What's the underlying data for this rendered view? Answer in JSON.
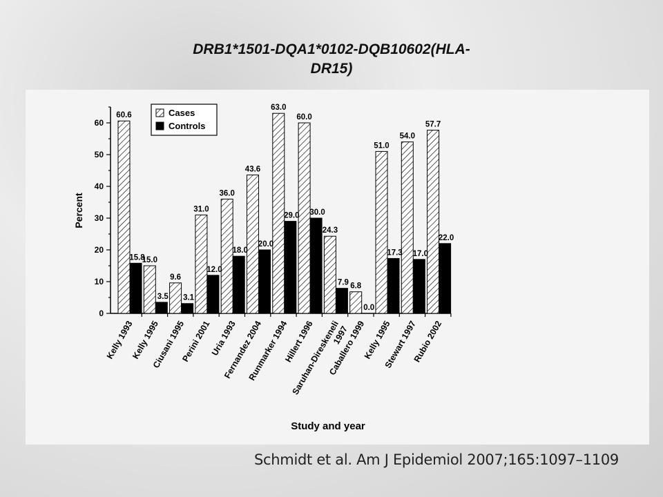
{
  "slide": {
    "title_line1": "DRB1*1501-DQA1*0102-DQB10602(HLA-",
    "title_line2": "DR15)",
    "citation": "Schmidt et al. Am J Epidemiol 2007;165:1097–1109"
  },
  "chart_data": {
    "type": "bar",
    "categories": [
      "Kelly 1993",
      "Kelly 1995",
      "Ciusani 1995",
      "Perini 2001",
      "Uria 1993",
      "Fernandez 2004",
      "Runmarker 1994",
      "Hillert 1996",
      "Saruhan-Direskeneli\n1997",
      "Caballero 1999",
      "Kelly 1995",
      "Stewart 1997",
      "Rubio 2002"
    ],
    "series": [
      {
        "name": "Cases",
        "values": [
          60.6,
          15.0,
          9.6,
          31.0,
          36.0,
          43.6,
          63.0,
          60.0,
          24.3,
          6.8,
          51.0,
          54.0,
          57.7
        ],
        "pattern": "hatched"
      },
      {
        "name": "Controls",
        "values": [
          15.8,
          3.5,
          3.1,
          12.0,
          18.0,
          20.0,
          29.0,
          30.0,
          7.9,
          0.0,
          17.3,
          17.0,
          22.0
        ],
        "color": "#000000"
      }
    ],
    "data_labels": {
      "Cases": [
        "60.6",
        "15.0",
        "9.6",
        "31.0",
        "36.0",
        "43.6",
        "63.0",
        "60.0",
        "24.3",
        "6.8",
        "51.0",
        "54.0",
        "57.7"
      ],
      "Controls": [
        "15.8",
        "3.5",
        "3.1",
        "12.0",
        "18.0",
        "20.0",
        "29.0",
        "30.0",
        "7.9",
        "0.0",
        "17.3",
        "17.0",
        "22.0"
      ]
    },
    "xlabel": "Study and year",
    "ylabel": "Percent",
    "ylim": [
      0,
      65
    ],
    "yticks": [
      0,
      10,
      20,
      30,
      40,
      50,
      60
    ],
    "legend_position": "top-left",
    "grid": false
  }
}
